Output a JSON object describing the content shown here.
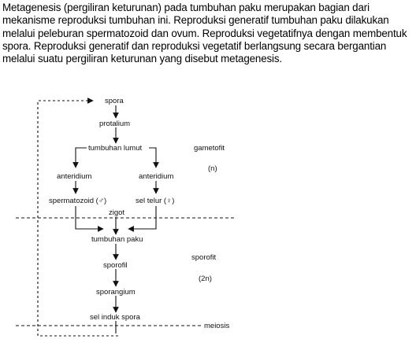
{
  "paragraph": "Metagenesis (pergiliran keturunan) pada tumbuhan paku merupakan bagian dari mekanisme reproduksi tumbuhan ini. Reproduksi generatif tumbuhan paku dilakukan melalui peleburan spermatozoid dan ovum. Reproduksi vegetatifnya dengan membentuk spora. Reproduksi generatif dan reproduksi vegetatif berlangsung secara bergantian melalui suatu pergiliran keturunan yang disebut metagenesis.",
  "diagram": {
    "nodes": {
      "spora": "spora",
      "protalium": "protalium",
      "tumbuhan_lumut": "tumbuhan lumut",
      "anteridium_left": "anteridium",
      "anteridium_right": "anteridium",
      "spermatozoid": "spermatozoid (♂)",
      "sel_telur": "sel telur (♀)",
      "zigot": "zigot",
      "tumbuhan_paku": "tumbuhan paku",
      "sporofil": "sporofil",
      "sporangium": "sporangium",
      "sel_induk_spora": "sel induk spora"
    },
    "phases": {
      "gametofit": "gametofit",
      "gametofit_ploidy": "(n)",
      "sporofit": "sporofit",
      "sporofit_ploidy": "(2n)",
      "meiosis": "meiosis"
    }
  }
}
